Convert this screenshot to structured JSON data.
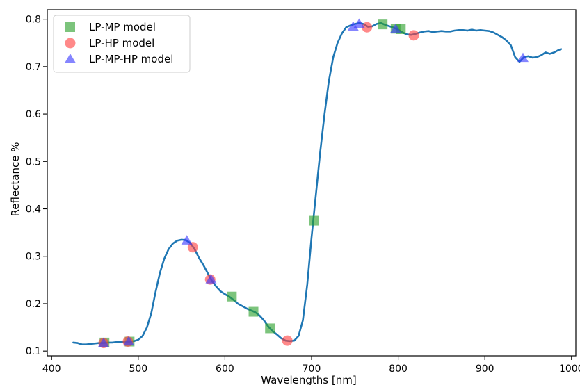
{
  "chart_data": {
    "type": "line",
    "title": "",
    "xlabel": "Wavelengths [nm]",
    "ylabel": "Reflectance %",
    "xlim": [
      395,
      1005
    ],
    "ylim": [
      0.09,
      0.82
    ],
    "xticks": [
      400,
      500,
      600,
      700,
      800,
      900,
      1000
    ],
    "yticks": [
      0.1,
      0.2,
      0.3,
      0.4,
      0.5,
      0.6,
      0.7,
      0.8
    ],
    "grid": false,
    "legend_position": "top-left",
    "curve": {
      "color": "#1f77b4",
      "x": [
        425,
        430,
        435,
        440,
        445,
        450,
        455,
        460,
        465,
        470,
        475,
        480,
        485,
        490,
        495,
        500,
        505,
        510,
        515,
        520,
        525,
        530,
        535,
        540,
        545,
        550,
        555,
        560,
        565,
        570,
        575,
        580,
        585,
        590,
        595,
        600,
        605,
        610,
        615,
        620,
        625,
        630,
        635,
        640,
        645,
        650,
        655,
        660,
        665,
        670,
        675,
        680,
        685,
        690,
        695,
        700,
        705,
        710,
        715,
        720,
        725,
        730,
        735,
        740,
        745,
        750,
        755,
        760,
        765,
        770,
        775,
        780,
        785,
        790,
        795,
        800,
        805,
        810,
        815,
        820,
        825,
        830,
        835,
        840,
        845,
        850,
        855,
        860,
        865,
        870,
        875,
        880,
        885,
        890,
        895,
        900,
        905,
        910,
        915,
        920,
        925,
        930,
        935,
        940,
        945,
        950,
        955,
        960,
        965,
        970,
        975,
        980,
        985,
        988
      ],
      "y": [
        0.118,
        0.117,
        0.114,
        0.114,
        0.115,
        0.116,
        0.117,
        0.117,
        0.118,
        0.118,
        0.119,
        0.119,
        0.12,
        0.12,
        0.121,
        0.124,
        0.132,
        0.15,
        0.18,
        0.225,
        0.265,
        0.295,
        0.315,
        0.327,
        0.333,
        0.335,
        0.334,
        0.328,
        0.315,
        0.297,
        0.282,
        0.265,
        0.248,
        0.236,
        0.226,
        0.22,
        0.215,
        0.208,
        0.2,
        0.195,
        0.19,
        0.186,
        0.182,
        0.175,
        0.165,
        0.152,
        0.142,
        0.135,
        0.127,
        0.122,
        0.121,
        0.122,
        0.132,
        0.165,
        0.24,
        0.34,
        0.43,
        0.52,
        0.6,
        0.67,
        0.72,
        0.75,
        0.77,
        0.783,
        0.787,
        0.79,
        0.792,
        0.79,
        0.784,
        0.785,
        0.79,
        0.792,
        0.788,
        0.785,
        0.782,
        0.778,
        0.772,
        0.768,
        0.767,
        0.769,
        0.772,
        0.774,
        0.775,
        0.773,
        0.774,
        0.775,
        0.774,
        0.774,
        0.776,
        0.777,
        0.777,
        0.776,
        0.778,
        0.776,
        0.777,
        0.776,
        0.775,
        0.772,
        0.767,
        0.762,
        0.755,
        0.745,
        0.72,
        0.71,
        0.72,
        0.722,
        0.719,
        0.72,
        0.724,
        0.73,
        0.727,
        0.73,
        0.735,
        0.737
      ]
    },
    "series": [
      {
        "name": "LP-MP model",
        "marker": "square",
        "color": "#2ca02c",
        "x": [
          461,
          490,
          608,
          633,
          652,
          703,
          782,
          797,
          803
        ],
        "y": [
          0.118,
          0.12,
          0.215,
          0.183,
          0.148,
          0.375,
          0.789,
          0.78,
          0.779
        ]
      },
      {
        "name": "LP-HP model",
        "marker": "circle",
        "color": "#ff4040",
        "x": [
          460,
          488,
          563,
          583,
          672,
          764,
          818
        ],
        "y": [
          0.117,
          0.12,
          0.319,
          0.251,
          0.122,
          0.783,
          0.766
        ]
      },
      {
        "name": "LP-MP-HP model",
        "marker": "triangle",
        "color": "#3a3aff",
        "x": [
          460,
          489,
          556,
          584,
          748,
          755,
          797,
          944
        ],
        "y": [
          0.117,
          0.12,
          0.333,
          0.251,
          0.784,
          0.79,
          0.779,
          0.718
        ]
      }
    ]
  }
}
